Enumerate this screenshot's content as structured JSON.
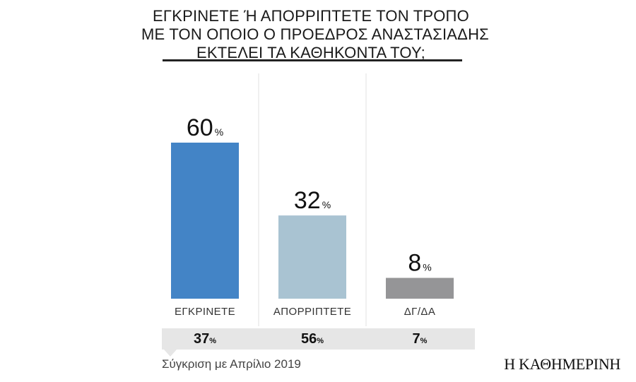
{
  "title_lines": [
    "ΕΓΚΡΙΝΕΤΕ Ή ΑΠΟΡΡΙΠΤΕΤΕ ΤΟΝ ΤΡΟΠΟ",
    "ΜΕ ΤΟΝ ΟΠΟΙΟ Ο ΠΡΟΕΔΡΟΣ ΑΝΑΣΤΑΣΙΑΔΗΣ",
    "ΕΚΤΕΛΕΙ ΤΑ ΚΑΘΗΚΟΝΤΑ ΤΟΥ;"
  ],
  "percent_sign": "%",
  "chart_data": {
    "type": "bar",
    "title": "ΕΓΚΡΙΝΕΤΕ Ή ΑΠΟΡΡΙΠΤΕΤΕ ΤΟΝ ΤΡΟΠΟ ΜΕ ΤΟΝ ΟΠΟΙΟ Ο ΠΡΟΕΔΡΟΣ ΑΝΑΣΤΑΣΙΑΔΗΣ ΕΚΤΕΛΕΙ ΤΑ ΚΑΘΗΚΟΝΤΑ ΤΟΥ;",
    "categories": [
      "ΕΓΚΡΙΝΕΤΕ",
      "ΑΠΟΡΡΙΠΤΕΤΕ",
      "ΔΓ/ΔΑ"
    ],
    "values": [
      60,
      32,
      8
    ],
    "unit": "%",
    "colors": [
      "#4384c6",
      "#a9c3d2",
      "#959597"
    ],
    "ylim": [
      0,
      60
    ],
    "grid": false,
    "comparison": {
      "caption": "Σύγκριση με Απρίλιο 2019",
      "values": [
        37,
        56,
        7
      ]
    }
  },
  "logo_text": "Η ΚΑΘΗΜΕΡΙΝΗ"
}
